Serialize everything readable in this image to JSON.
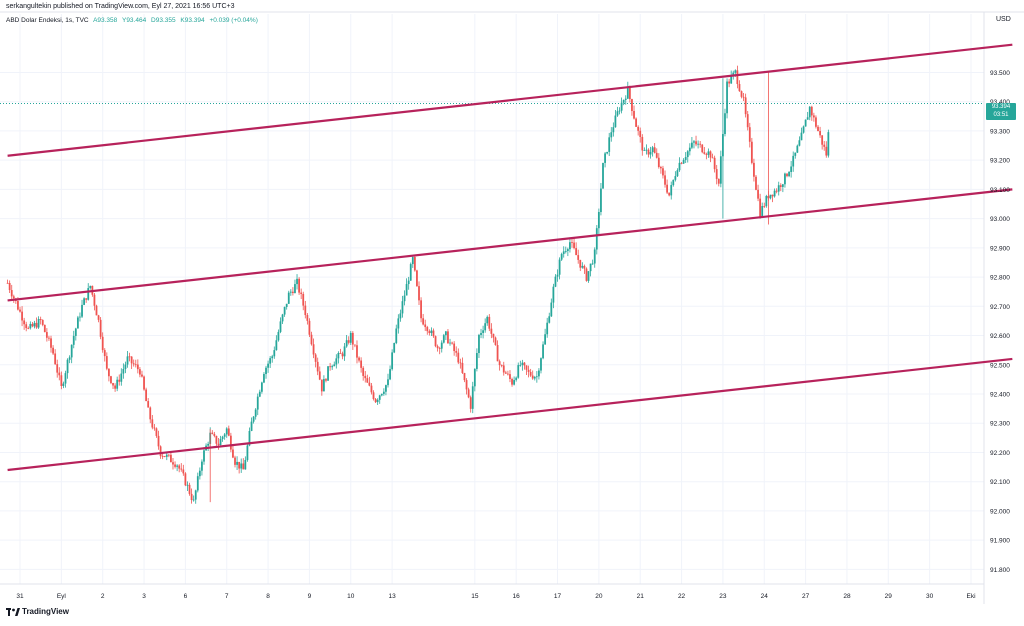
{
  "header": {
    "publisher": "serkangultekin published on TradingView.com, Eyl 27, 2021 16:56 UTC+3",
    "symbol": "ABD Dolar Endeksi, 1s, TVC",
    "open": "A93.358",
    "high": "Y93.464",
    "low": "D93.355",
    "close": "K93.394",
    "change": "+0.039 (+0.04%)"
  },
  "price_axis": {
    "currency": "USD"
  },
  "price_tag": {
    "price": "93.394",
    "countdown": "03:51"
  },
  "brand": {
    "logo_text": "TradingView"
  },
  "colors": {
    "up": "#26a69a",
    "down": "#ef5350",
    "channel": "#b7225b",
    "axis_text": "#131722"
  },
  "chart_data": {
    "type": "candlestick",
    "title": "ABD Dolar Endeksi, 1s, TVC",
    "ylim": [
      91.75,
      93.7
    ],
    "y_ticks": [
      "93.500",
      "93.400",
      "93.300",
      "93.200",
      "93.100",
      "93.000",
      "92.900",
      "92.800",
      "92.700",
      "92.600",
      "92.500",
      "92.400",
      "92.300",
      "92.200",
      "92.100",
      "92.000",
      "91.900",
      "91.800"
    ],
    "x_ticks": [
      {
        "label": "31",
        "pos": 0.0
      },
      {
        "label": "Eyl",
        "pos": 1.0
      },
      {
        "label": "2",
        "pos": 2.0
      },
      {
        "label": "3",
        "pos": 3.0
      },
      {
        "label": "6",
        "pos": 4.0
      },
      {
        "label": "7",
        "pos": 5.0
      },
      {
        "label": "8",
        "pos": 6.0
      },
      {
        "label": "9",
        "pos": 7.0
      },
      {
        "label": "10",
        "pos": 8.0
      },
      {
        "label": "13",
        "pos": 9.0
      },
      {
        "label": "15",
        "pos": 11.0
      },
      {
        "label": "16",
        "pos": 12.0
      },
      {
        "label": "17",
        "pos": 13.0
      },
      {
        "label": "20",
        "pos": 14.0
      },
      {
        "label": "21",
        "pos": 15.0
      },
      {
        "label": "22",
        "pos": 16.0
      },
      {
        "label": "23",
        "pos": 17.0
      },
      {
        "label": "24",
        "pos": 18.0
      },
      {
        "label": "27",
        "pos": 19.0
      },
      {
        "label": "28",
        "pos": 20.0
      },
      {
        "label": "29",
        "pos": 21.0
      },
      {
        "label": "30",
        "pos": 22.0
      },
      {
        "label": "Eki",
        "pos": 23.0
      }
    ],
    "last_price": 93.394,
    "channel_lines": [
      {
        "name": "upper",
        "x": [
          -0.3,
          24.0
        ],
        "y": [
          93.215,
          93.595
        ]
      },
      {
        "name": "middle",
        "x": [
          -0.3,
          24.0
        ],
        "y": [
          92.72,
          93.1
        ]
      },
      {
        "name": "lower",
        "x": [
          -0.3,
          24.0
        ],
        "y": [
          92.14,
          92.52
        ]
      }
    ],
    "price_path": {
      "x": [
        -0.3,
        0.0,
        0.2,
        0.5,
        0.8,
        1.0,
        1.3,
        1.5,
        1.7,
        1.9,
        2.1,
        2.3,
        2.6,
        2.9,
        3.1,
        3.4,
        3.6,
        3.8,
        4.0,
        4.2,
        4.4,
        4.6,
        4.8,
        5.0,
        5.2,
        5.4,
        5.6,
        5.9,
        6.1,
        6.3,
        6.5,
        6.7,
        6.9,
        7.1,
        7.3,
        7.5,
        7.8,
        8.0,
        8.3,
        8.6,
        8.9,
        9.1,
        9.3,
        9.5,
        9.7,
        9.9,
        10.1,
        10.3,
        10.6,
        10.9,
        11.1,
        11.3,
        11.6,
        11.9,
        12.1,
        12.3,
        12.5,
        12.7,
        12.9,
        13.1,
        13.3,
        13.5,
        13.7,
        13.9,
        14.1,
        14.3,
        14.5,
        14.7,
        14.9,
        15.1,
        15.3,
        15.5,
        15.7,
        15.9,
        16.1,
        16.3,
        16.5,
        16.7,
        16.9,
        17.1,
        17.3,
        17.5,
        17.7,
        17.9,
        18.1,
        18.3,
        18.5,
        18.7,
        18.9,
        19.1,
        19.3,
        19.5,
        19.6
      ],
      "y": [
        92.78,
        92.68,
        92.62,
        92.65,
        92.54,
        92.42,
        92.6,
        92.7,
        92.77,
        92.65,
        92.48,
        92.42,
        92.52,
        92.48,
        92.34,
        92.2,
        92.18,
        92.16,
        92.1,
        92.03,
        92.18,
        92.26,
        92.23,
        92.28,
        92.17,
        92.14,
        92.3,
        92.48,
        92.53,
        92.64,
        92.74,
        92.78,
        92.68,
        92.55,
        92.42,
        92.5,
        92.54,
        92.6,
        92.46,
        92.38,
        92.44,
        92.62,
        92.74,
        92.86,
        92.66,
        92.62,
        92.56,
        92.6,
        92.52,
        92.36,
        92.6,
        92.66,
        92.5,
        92.44,
        92.5,
        92.47,
        92.46,
        92.6,
        92.76,
        92.88,
        92.92,
        92.86,
        92.8,
        92.88,
        93.18,
        93.3,
        93.38,
        93.44,
        93.32,
        93.22,
        93.24,
        93.16,
        93.08,
        93.18,
        93.22,
        93.26,
        93.24,
        93.22,
        93.12,
        93.46,
        93.5,
        93.4,
        93.2,
        93.02,
        93.08,
        93.1,
        93.14,
        93.2,
        93.28,
        93.38,
        93.3,
        93.22,
        93.36
      ]
    }
  }
}
